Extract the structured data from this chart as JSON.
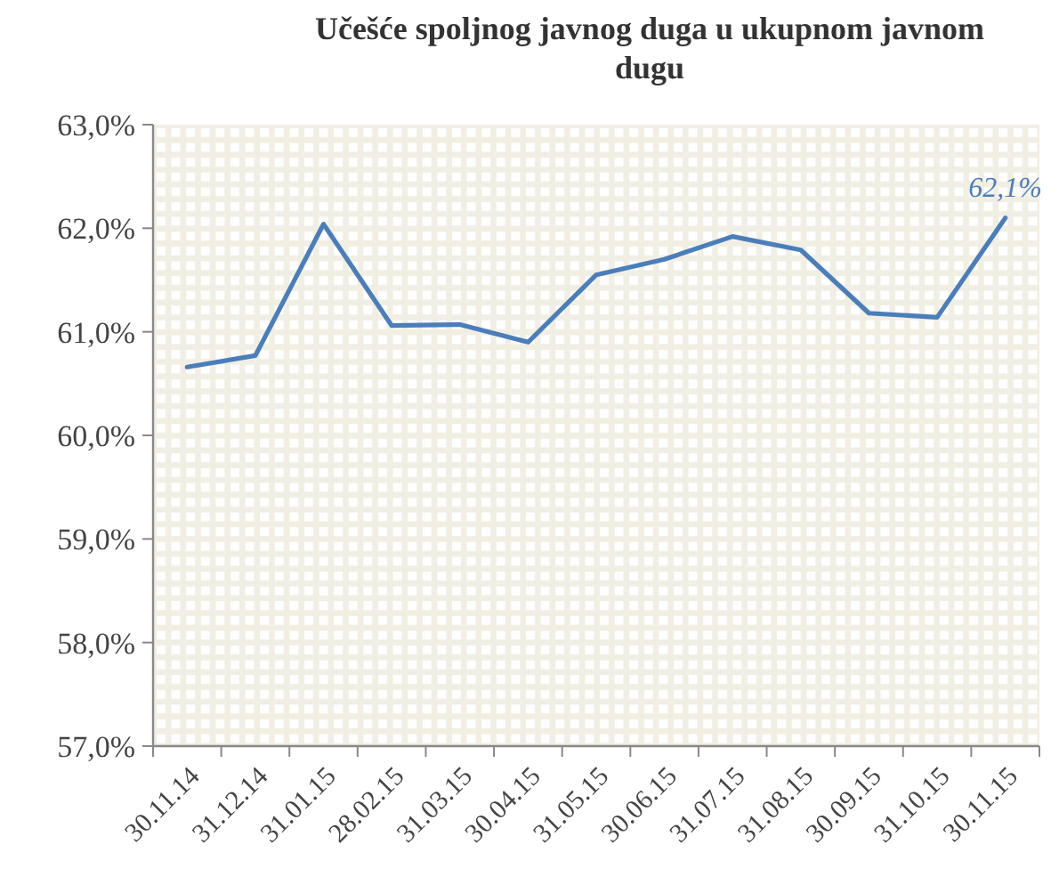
{
  "chart_data": {
    "type": "line",
    "title": "Učešće spoljnog javnog duga u ukupnom javnom dugu",
    "categories": [
      "30.11.14",
      "31.12.14",
      "31.01.15",
      "28.02.15",
      "31.03.15",
      "30.04.15",
      "31.05.15",
      "30.06.15",
      "31.07.15",
      "31.08.15",
      "30.09.15",
      "31.10.15",
      "30.11.15"
    ],
    "series": [
      {
        "color": "#4a7ebb",
        "values": [
          60.66,
          60.77,
          62.04,
          61.06,
          61.07,
          60.9,
          61.55,
          61.7,
          61.92,
          61.79,
          61.18,
          61.14,
          62.1
        ],
        "value_labels": [
          null,
          null,
          null,
          null,
          null,
          null,
          null,
          null,
          null,
          null,
          null,
          null,
          "62,1%"
        ]
      }
    ],
    "ylim": [
      57,
      63
    ],
    "yticks": [
      {
        "value": 57,
        "label": "57,0%"
      },
      {
        "value": 58,
        "label": "58,0%"
      },
      {
        "value": 59,
        "label": "59,0%"
      },
      {
        "value": 60,
        "label": "60,0%"
      },
      {
        "value": 61,
        "label": "61,0%"
      },
      {
        "value": 62,
        "label": "62,0%"
      },
      {
        "value": 63,
        "label": "63,0%"
      }
    ],
    "marker": "none",
    "line_style": "solid"
  }
}
